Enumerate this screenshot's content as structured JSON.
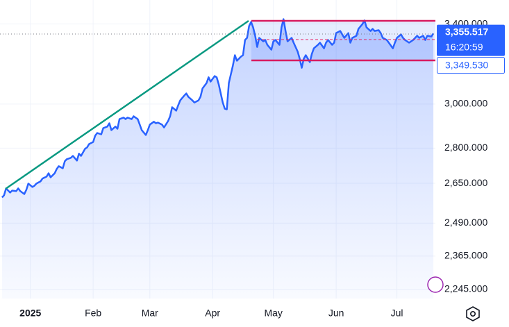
{
  "chart_data": {
    "type": "line",
    "color": "#2962ff",
    "log_scale": true,
    "grid": true,
    "area_fill": true,
    "xlim": [
      -15,
      200
    ],
    "xticks": [
      {
        "value": 0,
        "label": "2025"
      },
      {
        "value": 31,
        "label": "Feb"
      },
      {
        "value": 59,
        "label": "Mar"
      },
      {
        "value": 90,
        "label": "Apr"
      },
      {
        "value": 120,
        "label": "May"
      },
      {
        "value": 151,
        "label": "Jun"
      },
      {
        "value": 181,
        "label": "Jul"
      }
    ],
    "ylim": [
      2213,
      3530
    ],
    "yticks": [
      {
        "value": 2245,
        "label": "2,245.000"
      },
      {
        "value": 2365,
        "label": "2,365.000"
      },
      {
        "value": 2490,
        "label": "2,490.000"
      },
      {
        "value": 2650,
        "label": "2,650.000"
      },
      {
        "value": 2800,
        "label": "2,800.000"
      },
      {
        "value": 3000,
        "label": "3,000.000"
      },
      {
        "value": 3400,
        "label": "3,400.000"
      }
    ],
    "x": [
      -14,
      -13,
      -12,
      -10,
      -9,
      -7,
      -6,
      -5,
      -3,
      -2,
      -1,
      1,
      2,
      3,
      5,
      6,
      8,
      9,
      10,
      12,
      13,
      14,
      16,
      17,
      18,
      20,
      21,
      23,
      24,
      25,
      27,
      28,
      29,
      31,
      32,
      33,
      35,
      36,
      38,
      39,
      40,
      42,
      43,
      44,
      46,
      47,
      48,
      50,
      51,
      53,
      54,
      55,
      57,
      58,
      59,
      61,
      62,
      63,
      65,
      66,
      68,
      69,
      70,
      72,
      73,
      74,
      76,
      77,
      78,
      80,
      81,
      83,
      84,
      85,
      87,
      88,
      89,
      91,
      92,
      93,
      95,
      96,
      97,
      98,
      100,
      101,
      102,
      104,
      105,
      106,
      107,
      108,
      109,
      110,
      111,
      112,
      113,
      115,
      116,
      117,
      119,
      120,
      121,
      123,
      124,
      125,
      126,
      127,
      129,
      130,
      132,
      133,
      134,
      135,
      136,
      138,
      139,
      140,
      142,
      143,
      145,
      146,
      147,
      149,
      150,
      151,
      153,
      154,
      155,
      157,
      158,
      159,
      161,
      162,
      164,
      165,
      166,
      168,
      169,
      170,
      172,
      173,
      174,
      176,
      177,
      179,
      180,
      181,
      183,
      184,
      185,
      187,
      188,
      189,
      191,
      192,
      194,
      195,
      196,
      198,
      199
    ],
    "values": [
      2592,
      2601,
      2629,
      2612,
      2620,
      2618,
      2629,
      2618,
      2606,
      2623,
      2649,
      2635,
      2640,
      2649,
      2658,
      2670,
      2678,
      2692,
      2675,
      2692,
      2710,
      2722,
      2713,
      2743,
      2752,
      2758,
      2766,
      2746,
      2776,
      2766,
      2797,
      2803,
      2818,
      2827,
      2855,
      2867,
      2861,
      2889,
      2896,
      2911,
      2880,
      2896,
      2886,
      2930,
      2937,
      2930,
      2937,
      2930,
      2943,
      2930,
      2905,
      2880,
      2858,
      2880,
      2905,
      2918,
      2911,
      2914,
      2905,
      2892,
      2921,
      2943,
      2985,
      2969,
      2994,
      3017,
      3040,
      3050,
      3034,
      3017,
      3007,
      3017,
      3034,
      3074,
      3100,
      3128,
      3107,
      3134,
      3128,
      3094,
      3007,
      2978,
      2975,
      3100,
      3186,
      3238,
      3210,
      3231,
      3238,
      3316,
      3327,
      3389,
      3411,
      3382,
      3338,
      3280,
      3327,
      3309,
      3316,
      3291,
      3266,
      3309,
      3316,
      3291,
      3382,
      3426,
      3363,
      3309,
      3327,
      3302,
      3256,
      3220,
      3175,
      3220,
      3238,
      3203,
      3245,
      3273,
      3291,
      3302,
      3273,
      3302,
      3316,
      3291,
      3302,
      3352,
      3363,
      3345,
      3327,
      3352,
      3302,
      3327,
      3338,
      3374,
      3400,
      3419,
      3382,
      3363,
      3374,
      3363,
      3367,
      3352,
      3327,
      3316,
      3302,
      3273,
      3302,
      3327,
      3345,
      3327,
      3316,
      3302,
      3309,
      3316,
      3338,
      3327,
      3338,
      3316,
      3338,
      3334,
      3350
    ],
    "price_labels": [
      {
        "value": 3355.517,
        "label": "3,355.517"
      },
      {
        "value": 3349.53,
        "label": "3,349.530"
      }
    ],
    "countdown": "16:20:59"
  }
}
